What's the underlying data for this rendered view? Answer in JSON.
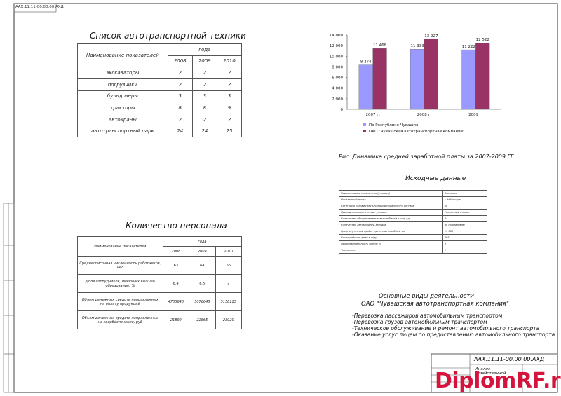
{
  "stamp_code": "ААХ.11.11-00.00.00.АХД",
  "equipment": {
    "title": "Список автотранспортной техники",
    "header": {
      "name": "Наименование показателей",
      "group": "года",
      "years": [
        "2008",
        "2009",
        "2010"
      ]
    },
    "rows": [
      [
        "экскаваторы",
        "2",
        "2",
        "2"
      ],
      [
        "погрузчики",
        "2",
        "2",
        "2"
      ],
      [
        "бульдозеры",
        "3",
        "3",
        "3"
      ],
      [
        "тракторы",
        "8",
        "8",
        "9"
      ],
      [
        "автокраны",
        "2",
        "2",
        "2"
      ],
      [
        "автотранспортный парк",
        "24",
        "24",
        "25"
      ]
    ]
  },
  "chart_data": {
    "type": "bar",
    "categories": [
      "2007 г.",
      "2008 г.",
      "2009 г."
    ],
    "series": [
      {
        "name": "По Республике Чувашия",
        "color": "#9999ff",
        "values": [
          8374,
          11333,
          11222
        ],
        "value_labels": [
          "8 374",
          "11 333",
          "11 222"
        ]
      },
      {
        "name": "ОАО \"Чувашская автотранспортная компания\"",
        "color": "#993366",
        "values": [
          11468,
          13227,
          12522
        ],
        "value_labels": [
          "11 468",
          "13 227",
          "12 522"
        ]
      }
    ],
    "ylim": [
      0,
      14000
    ],
    "yticks": [
      0,
      {
        "value": 2000,
        "label": "2 000"
      },
      {
        "value": 4000,
        "label": "4 000"
      },
      {
        "value": 6000,
        "label": "6 000"
      },
      {
        "value": 8000,
        "label": "8 000"
      },
      {
        "value": 10000,
        "label": "10 000"
      },
      {
        "value": 12000,
        "label": "12 000"
      },
      {
        "value": 14000,
        "label": "14 000"
      }
    ],
    "caption": "Рис. Динамика средней заработной платы за 2007-2009 ГГ."
  },
  "source_data": {
    "title": "Исходные данные",
    "rows": [
      [
        "Наименование показателя (условия)",
        "Значение"
      ],
      [
        "Населенный пункт",
        "г.Чебоксары"
      ],
      [
        "Категория условий эксплуатации подвижного состава",
        "III"
      ],
      [
        "Природно-климатические условия",
        "Умеренный климат"
      ],
      [
        "Количество обслуживаемых автомобилей в год, ед",
        "24"
      ],
      [
        "Количество автомобилей-заездов",
        "по нормативам"
      ],
      [
        "Среднесуточный пробег одного автомобиля, км",
        "14 300"
      ],
      [
        "Число рабочих дней в году",
        "305"
      ],
      [
        "Продолжительность смены, ч",
        "8"
      ],
      [
        "Число смен",
        "1"
      ]
    ]
  },
  "personnel": {
    "title": "Количество персонала",
    "header": {
      "name": "Наименование показателей",
      "group": "года",
      "years": [
        "2008",
        "2009",
        "2010"
      ]
    },
    "rows": [
      [
        "Среднесписочная численность работников, чел",
        "63",
        "64",
        "66"
      ],
      [
        "Доля сотрудников, имеющих высшее образование, %",
        "6.4",
        "6.5",
        "7"
      ],
      [
        "Объем денежных средств направленных на оплату продукций",
        "4703640",
        "5076645",
        "5158115"
      ],
      [
        "Объем денежных средств направленных на соцобеспечение, руб",
        "21892",
        "22865",
        "23920"
      ]
    ]
  },
  "activities": {
    "title": "Основные виды деятельности",
    "subtitle": "ОАО \"Чувашская автотранспортная компания\"",
    "items": [
      "-Перевозка пассажиров автомобильным транспортом",
      "-Перевозка грузов автомобильным транспортом",
      "-Техническое обслуживание и ремонт автомобильного транспорта",
      "-Оказание услуг лицам по предоставлению автомобильного транспорта"
    ]
  },
  "title_block": {
    "code": "ААХ.11.11-00.00.00.АХД",
    "name": "Анализ хозяйственной"
  },
  "watermark": "DiplomRF.ru"
}
